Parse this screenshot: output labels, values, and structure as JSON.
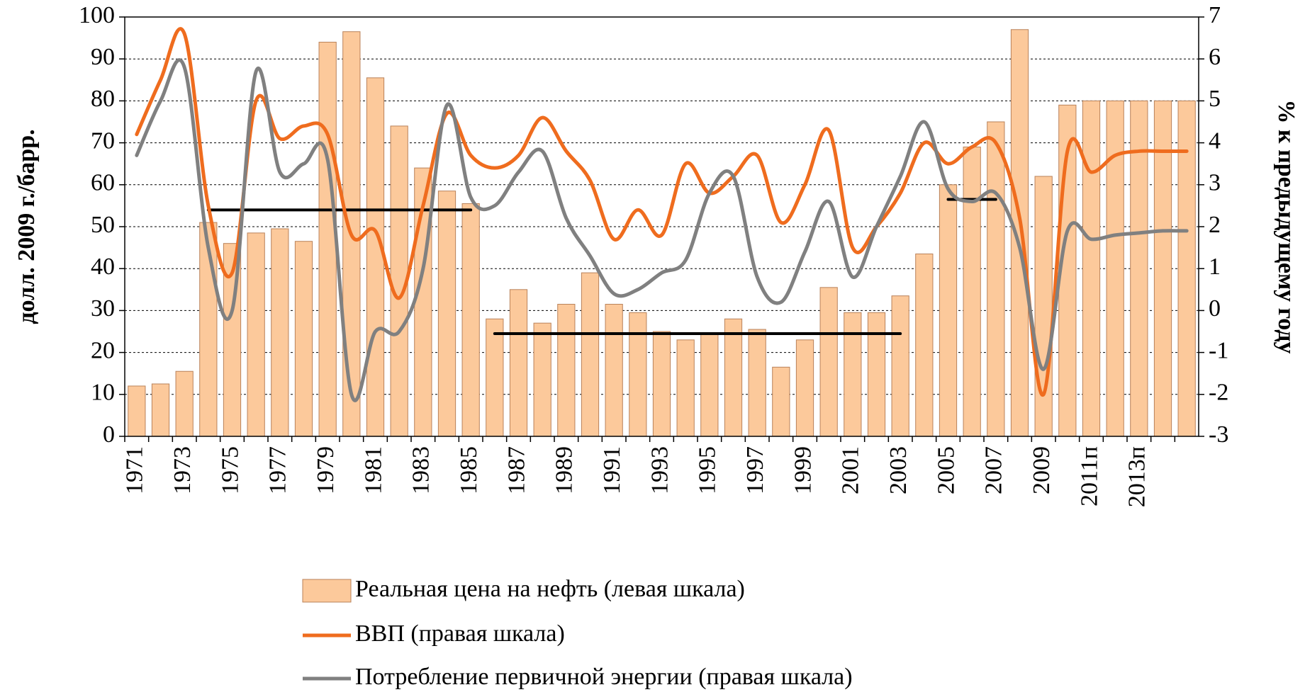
{
  "chart_data": {
    "type": "bar-line",
    "y_label": "долл. 2009 г./барр.",
    "y2_label": "% к предыдущему году",
    "categories": [
      "1971",
      null,
      "1973",
      null,
      "1975",
      null,
      "1977",
      null,
      "1979",
      null,
      "1981",
      null,
      "1983",
      null,
      "1985",
      null,
      "1987",
      null,
      "1989",
      null,
      "1991",
      null,
      "1993",
      null,
      "1995",
      null,
      "1997",
      null,
      "1999",
      null,
      "2001",
      null,
      "2003",
      null,
      "2005",
      null,
      "2007",
      null,
      "2009",
      null,
      "2011п",
      null,
      "2013п",
      null,
      null
    ],
    "series": [
      {
        "name": "Реальная цена на нефть (левая шкала)",
        "type": "bar",
        "color": "#fcc99b",
        "values": [
          12,
          12.5,
          15.5,
          51,
          46,
          48.5,
          49.5,
          46.5,
          94,
          96.5,
          85.5,
          74,
          64,
          58.5,
          55.5,
          28,
          35,
          27,
          31.5,
          39,
          31.5,
          29.5,
          25,
          23,
          24.5,
          28,
          25.5,
          16.5,
          23,
          35.5,
          29.5,
          29.5,
          33.5,
          43.5,
          60,
          69,
          75,
          97,
          62,
          79,
          80,
          80,
          80,
          80,
          80
        ]
      },
      {
        "name": "ВВП (правая шкала)",
        "type": "line",
        "axis": "y2",
        "color": "#ef6c1e",
        "values": [
          4.2,
          5.5,
          6.6,
          2.5,
          0.9,
          5.0,
          4.1,
          4.4,
          4.2,
          1.8,
          1.9,
          0.3,
          2.5,
          4.7,
          3.7,
          3.4,
          3.7,
          4.6,
          3.8,
          3.1,
          1.7,
          2.4,
          1.8,
          3.5,
          2.8,
          3.2,
          3.7,
          2.1,
          3.0,
          4.3,
          1.5,
          2.0,
          2.8,
          4.0,
          3.5,
          3.9,
          4.0,
          2.2,
          -2.0,
          3.8,
          3.3,
          3.7,
          3.8,
          3.8,
          3.8
        ]
      },
      {
        "name": "Потребление первичной энергии (правая шкала)",
        "type": "line",
        "axis": "y2",
        "color": "#808080",
        "values": [
          3.7,
          5.0,
          5.8,
          1.5,
          0.0,
          5.7,
          3.3,
          3.5,
          3.6,
          -2.0,
          -0.5,
          -0.5,
          1.0,
          4.9,
          2.7,
          2.5,
          3.3,
          3.8,
          2.2,
          1.3,
          0.4,
          0.5,
          0.9,
          1.2,
          2.8,
          3.2,
          0.8,
          0.2,
          1.4,
          2.6,
          0.8,
          2.0,
          3.2,
          4.5,
          2.9,
          2.6,
          2.8,
          1.5,
          -1.4,
          1.9,
          1.7,
          1.8,
          1.85,
          1.9,
          1.9
        ]
      }
    ],
    "reference_lines": [
      {
        "color": "#000000",
        "values": [
          null,
          null,
          null,
          2.4,
          2.4,
          2.4,
          2.4,
          2.4,
          2.4,
          2.4,
          2.4,
          2.4,
          2.4,
          2.4,
          2.4,
          null,
          null,
          null,
          null,
          null,
          null,
          null,
          null,
          null,
          null,
          null,
          null,
          null,
          null,
          null,
          null,
          null,
          null,
          null,
          null,
          null,
          null,
          null,
          null,
          null,
          null,
          null,
          null,
          null,
          null
        ]
      },
      {
        "color": "#000000",
        "values": [
          null,
          null,
          null,
          null,
          null,
          null,
          null,
          null,
          null,
          null,
          null,
          null,
          null,
          null,
          null,
          -0.55,
          -0.55,
          -0.55,
          -0.55,
          -0.55,
          -0.55,
          -0.55,
          -0.55,
          -0.55,
          -0.55,
          -0.55,
          -0.55,
          -0.55,
          -0.55,
          -0.55,
          -0.55,
          -0.55,
          -0.55,
          null,
          null,
          null,
          null,
          null,
          null,
          null,
          null,
          null,
          null,
          null,
          null
        ]
      },
      {
        "color": "#000000",
        "values": [
          null,
          null,
          null,
          null,
          null,
          null,
          null,
          null,
          null,
          null,
          null,
          null,
          null,
          null,
          null,
          null,
          null,
          null,
          null,
          null,
          null,
          null,
          null,
          null,
          null,
          null,
          null,
          null,
          null,
          null,
          null,
          null,
          null,
          null,
          2.65,
          2.65,
          2.65,
          null,
          null,
          null,
          null,
          null,
          null,
          null,
          null
        ]
      }
    ],
    "ylim": [
      0,
      100
    ],
    "yticks": [
      0,
      10,
      20,
      30,
      40,
      50,
      60,
      70,
      80,
      90,
      100
    ],
    "y2lim": [
      -3,
      7
    ],
    "y2ticks": [
      -3,
      -2,
      -1,
      0,
      1,
      2,
      3,
      4,
      5,
      6,
      7
    ],
    "grid": true
  }
}
